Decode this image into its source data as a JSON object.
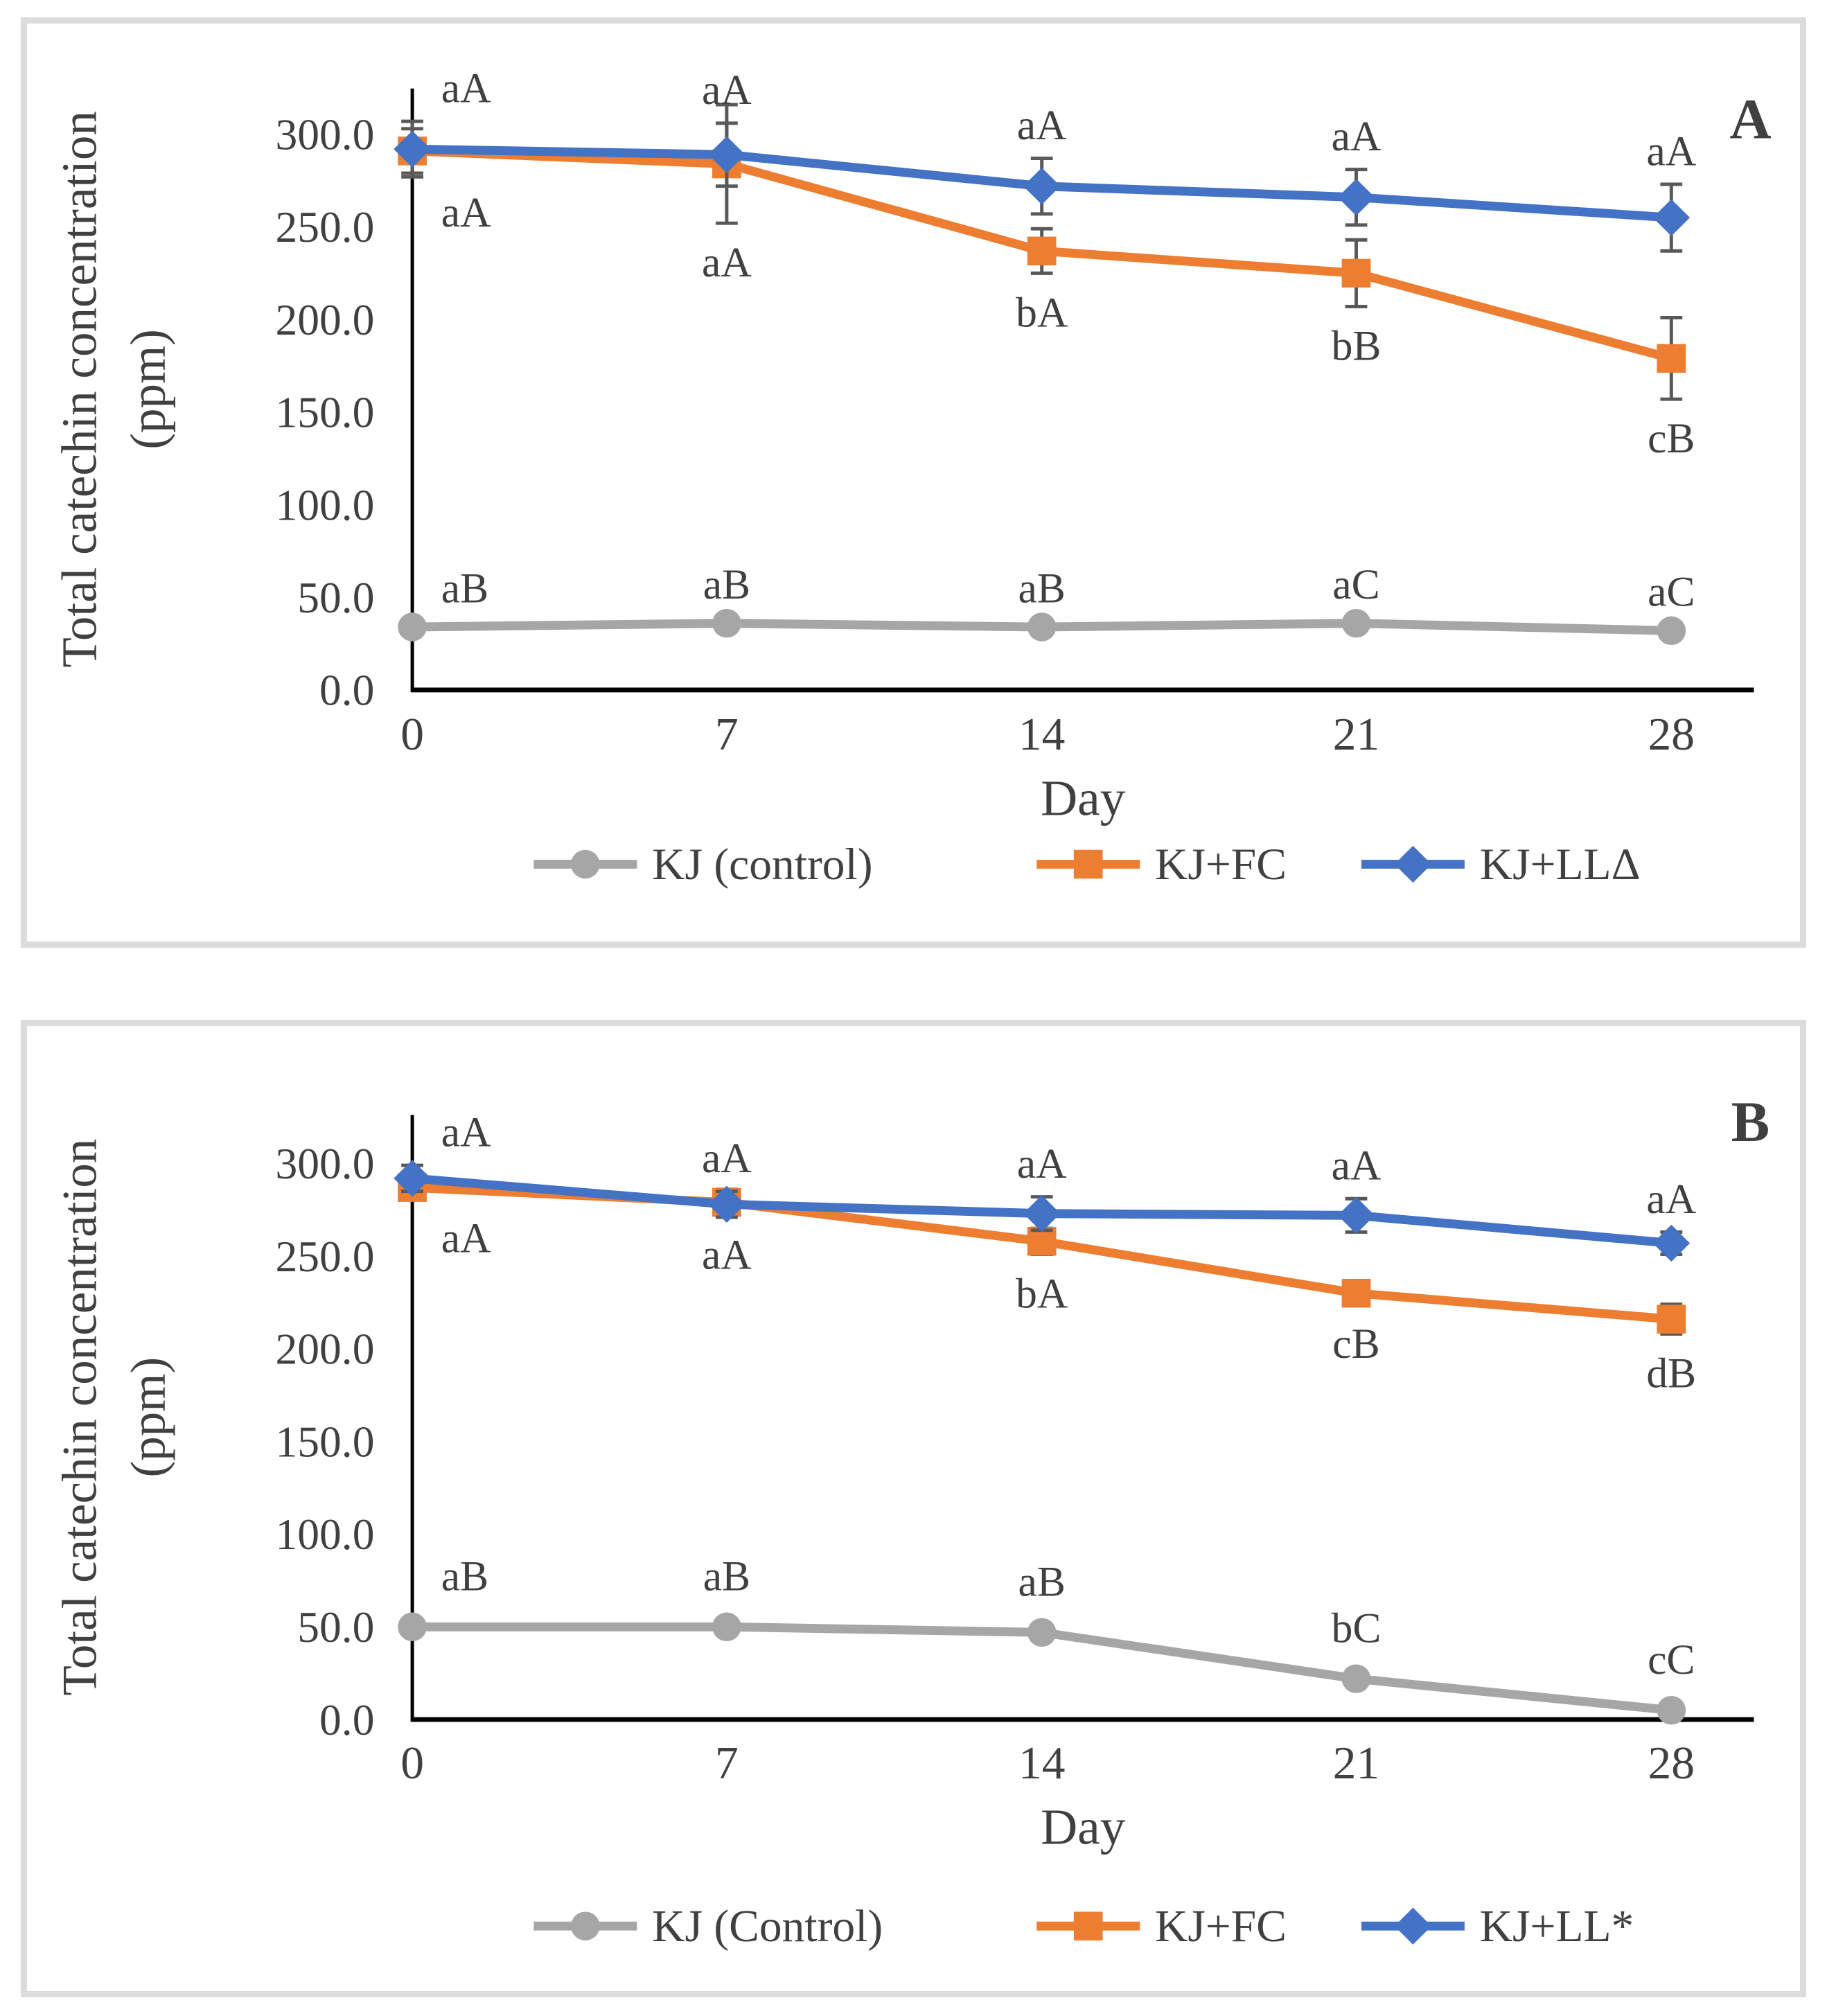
{
  "figure": {
    "panel_count": 2,
    "background_color": "#ffffff",
    "panel_border_color": "#dcdcdc"
  },
  "chart_data": [
    {
      "type": "line",
      "panel_label": "A",
      "xlabel": "Day",
      "ylabel_line1": "Total catechin concentration",
      "ylabel_line2": "(ppm)",
      "x": [
        0,
        7,
        14,
        21,
        28
      ],
      "xtick_labels": [
        "0",
        "7",
        "14",
        "21",
        "28"
      ],
      "ylim": [
        0,
        300
      ],
      "yticks": [
        0,
        50,
        100,
        150,
        200,
        250,
        300
      ],
      "ytick_labels": [
        "0.0",
        "50.0",
        "100.0",
        "150.0",
        "200.0",
        "250.0",
        "300.0"
      ],
      "grid": false,
      "legend_position": "bottom",
      "axis_color": "#000000",
      "error_bar_color": "#595959",
      "series": [
        {
          "name": "KJ (control)",
          "color": "#a6a6a6",
          "marker": "circle",
          "label_side": "above",
          "label_dy": 0,
          "values": [
            34,
            36,
            34,
            36,
            32
          ],
          "errors": [
            3,
            3,
            3,
            3,
            3
          ],
          "point_labels": [
            "aB",
            "aB",
            "aB",
            "aC",
            "aC"
          ]
        },
        {
          "name": "KJ+FC",
          "color": "#ed7d31",
          "marker": "square",
          "label_side": "below",
          "label_dy": 0,
          "values": [
            291,
            284,
            237,
            225,
            179
          ],
          "errors": [
            12,
            32,
            12,
            18,
            22
          ],
          "point_labels": [
            "aA",
            "aA",
            "bA",
            "bB",
            "cB"
          ]
        },
        {
          "name": "KJ+LLΔ",
          "color": "#4472c4",
          "marker": "diamond",
          "label_side": "above",
          "label_dy": 0,
          "values": [
            292,
            289,
            272,
            266,
            255
          ],
          "errors": [
            15,
            17,
            15,
            15,
            18
          ],
          "point_labels": [
            "aA",
            "aA",
            "aA",
            "aA",
            "aA"
          ]
        }
      ]
    },
    {
      "type": "line",
      "panel_label": "B",
      "xlabel": "Day",
      "ylabel_line1": "Total catechin concentration",
      "ylabel_line2": "(ppm)",
      "x": [
        0,
        7,
        14,
        21,
        28
      ],
      "xtick_labels": [
        "0",
        "7",
        "14",
        "21",
        "28"
      ],
      "ylim": [
        0,
        300
      ],
      "yticks": [
        0,
        50,
        100,
        150,
        200,
        250,
        300
      ],
      "ytick_labels": [
        "0.0",
        "50.0",
        "100.0",
        "150.0",
        "200.0",
        "250.0",
        "300.0"
      ],
      "grid": false,
      "legend_position": "bottom",
      "axis_color": "#000000",
      "error_bar_color": "#595959",
      "series": [
        {
          "name": "KJ (Control)",
          "color": "#a6a6a6",
          "marker": "circle",
          "label_side": "above",
          "label_dy": -20,
          "values": [
            50,
            50,
            47,
            22,
            5
          ],
          "errors": [
            2,
            2,
            2,
            2,
            2
          ],
          "point_labels": [
            "aB",
            "aB",
            "aB",
            "bC",
            "cC"
          ]
        },
        {
          "name": "KJ+FC",
          "color": "#ed7d31",
          "marker": "square",
          "label_side": "below",
          "label_dy": 0,
          "values": [
            287,
            279,
            258,
            230,
            216
          ],
          "errors": [
            6,
            7,
            7,
            6,
            8
          ],
          "point_labels": [
            "aA",
            "aA",
            "bA",
            "cB",
            "dB"
          ]
        },
        {
          "name": "KJ+LL*",
          "color": "#4472c4",
          "marker": "diamond",
          "label_side": "above",
          "label_dy": 0,
          "values": [
            292,
            278,
            273,
            272,
            257
          ],
          "errors": [
            7,
            7,
            9,
            9,
            6
          ],
          "point_labels": [
            "aA",
            "aA",
            "aA",
            "aA",
            "aA"
          ]
        }
      ]
    }
  ]
}
